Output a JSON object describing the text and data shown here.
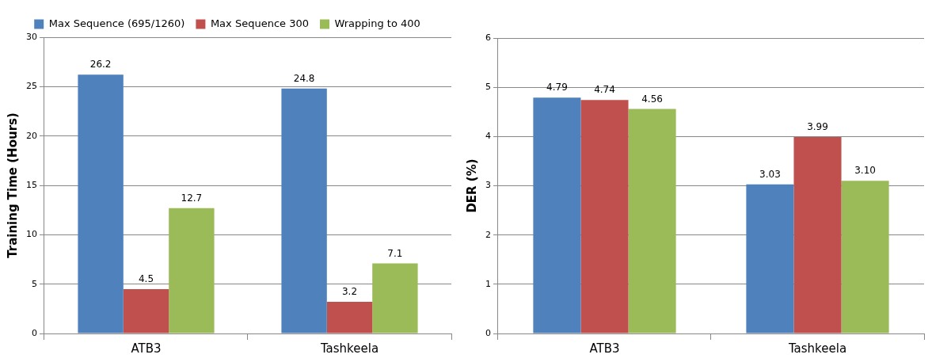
{
  "chart_data": [
    {
      "type": "bar",
      "ylabel": "Training Time (Hours)",
      "categories": [
        "ATB3",
        "Tashkeela"
      ],
      "series": [
        {
          "name": "Max Sequence (695/1260)",
          "color": "#4f81bd",
          "values": [
            26.2,
            24.8
          ]
        },
        {
          "name": "Max Sequence 300",
          "color": "#c0504d",
          "values": [
            4.5,
            3.2
          ]
        },
        {
          "name": "Wrapping to 400",
          "color": "#9bbb59",
          "values": [
            12.7,
            7.1
          ]
        }
      ],
      "ylim": [
        0,
        30
      ],
      "yticks": [
        0,
        5,
        10,
        15,
        20,
        25,
        30
      ],
      "grid": "y",
      "legend": "top",
      "data_labels": true
    },
    {
      "type": "bar",
      "ylabel": "DER (%)",
      "categories": [
        "ATB3",
        "Tashkeela"
      ],
      "series": [
        {
          "color": "#4f81bd",
          "values": [
            4.79,
            3.03
          ],
          "value_labels": [
            "4.79",
            "3.03"
          ]
        },
        {
          "color": "#c0504d",
          "values": [
            4.74,
            3.99
          ],
          "value_labels": [
            "4.74",
            "3.99"
          ]
        },
        {
          "color": "#9bbb59",
          "values": [
            4.56,
            3.1
          ],
          "value_labels": [
            "4.56",
            "3.10"
          ]
        }
      ],
      "ylim": [
        0,
        6
      ],
      "yticks": [
        0,
        1,
        2,
        3,
        4,
        5,
        6
      ],
      "grid": "y"
    }
  ]
}
